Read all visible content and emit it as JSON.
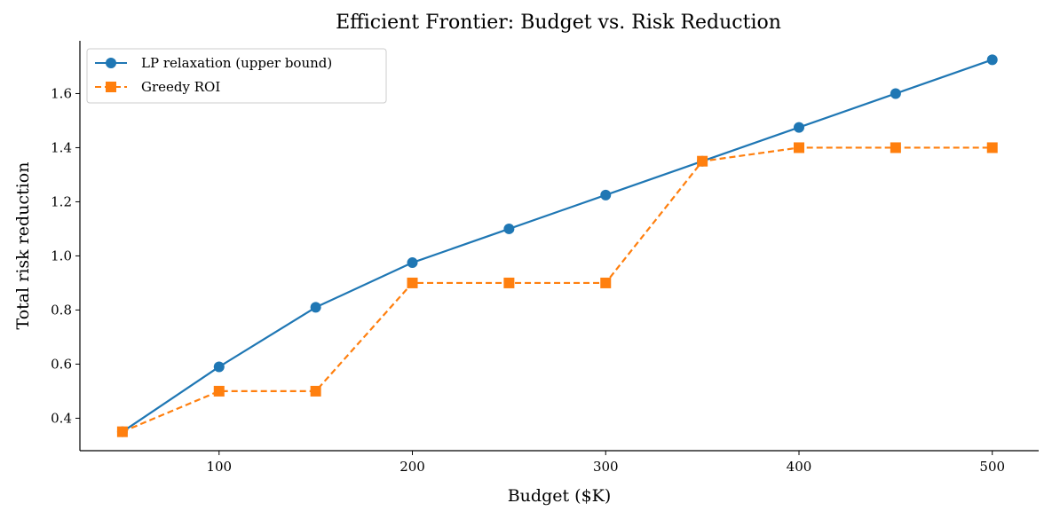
{
  "chart_data": {
    "type": "line",
    "title": "Efficient Frontier: Budget vs. Risk Reduction",
    "xlabel": "Budget ($K)",
    "ylabel": "Total risk reduction",
    "x": [
      50,
      100,
      150,
      200,
      250,
      300,
      350,
      400,
      450,
      500
    ],
    "xticks": [
      100,
      200,
      300,
      400,
      500
    ],
    "yticks": [
      0.4,
      0.6,
      0.8,
      1.0,
      1.2,
      1.4,
      1.6
    ],
    "xlim": [
      28,
      524
    ],
    "ylim": [
      0.28,
      1.795
    ],
    "grid": false,
    "legend_position": "upper-left",
    "series": [
      {
        "name": "LP relaxation (upper bound)",
        "values": [
          0.35,
          0.59,
          0.81,
          0.975,
          1.1,
          1.225,
          1.35,
          1.475,
          1.6,
          1.725
        ],
        "color": "#1f77b4",
        "marker": "circle",
        "linestyle": "solid"
      },
      {
        "name": "Greedy ROI",
        "values": [
          0.35,
          0.5,
          0.5,
          0.9,
          0.9,
          0.9,
          1.35,
          1.4,
          1.4,
          1.4
        ],
        "color": "#ff7f0e",
        "marker": "square",
        "linestyle": "dashed"
      }
    ]
  }
}
